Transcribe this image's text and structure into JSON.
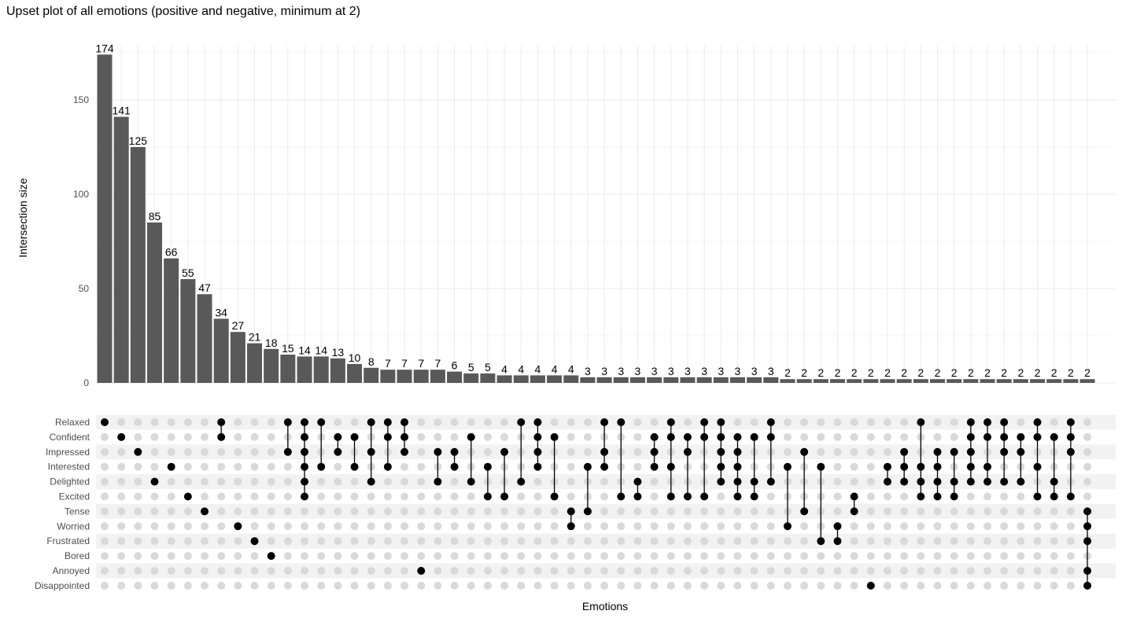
{
  "chart_data": {
    "type": "upset",
    "title": "Upset plot of all emotions (positive and negative, minimum at 2)",
    "ylabel": "Intersection size",
    "xlabel": "Emotions",
    "ylim": [
      0,
      175
    ],
    "yticks": [
      0,
      50,
      100,
      150
    ],
    "sets": [
      "Relaxed",
      "Confident",
      "Impressed",
      "Interested",
      "Delighted",
      "Excited",
      "Tense",
      "Worried",
      "Frustrated",
      "Bored",
      "Annoyed",
      "Disappointed"
    ],
    "intersections": [
      {
        "size": 174,
        "members": [
          "Relaxed"
        ]
      },
      {
        "size": 141,
        "members": [
          "Confident"
        ]
      },
      {
        "size": 125,
        "members": [
          "Impressed"
        ]
      },
      {
        "size": 85,
        "members": [
          "Delighted"
        ]
      },
      {
        "size": 66,
        "members": [
          "Interested"
        ]
      },
      {
        "size": 55,
        "members": [
          "Excited"
        ]
      },
      {
        "size": 47,
        "members": [
          "Tense"
        ]
      },
      {
        "size": 34,
        "members": [
          "Relaxed",
          "Confident"
        ]
      },
      {
        "size": 27,
        "members": [
          "Worried"
        ]
      },
      {
        "size": 21,
        "members": [
          "Frustrated"
        ]
      },
      {
        "size": 18,
        "members": [
          "Bored"
        ]
      },
      {
        "size": 15,
        "members": [
          "Relaxed",
          "Impressed"
        ]
      },
      {
        "size": 14,
        "members": [
          "Relaxed",
          "Confident",
          "Impressed",
          "Interested",
          "Delighted",
          "Excited"
        ]
      },
      {
        "size": 14,
        "members": [
          "Relaxed",
          "Interested"
        ]
      },
      {
        "size": 13,
        "members": [
          "Confident",
          "Impressed"
        ]
      },
      {
        "size": 10,
        "members": [
          "Confident",
          "Interested"
        ]
      },
      {
        "size": 8,
        "members": [
          "Relaxed",
          "Impressed",
          "Delighted"
        ]
      },
      {
        "size": 7,
        "members": [
          "Relaxed",
          "Confident",
          "Interested"
        ]
      },
      {
        "size": 7,
        "members": [
          "Relaxed",
          "Confident",
          "Impressed"
        ]
      },
      {
        "size": 7,
        "members": [
          "Annoyed"
        ]
      },
      {
        "size": 7,
        "members": [
          "Impressed",
          "Delighted"
        ]
      },
      {
        "size": 6,
        "members": [
          "Impressed",
          "Interested"
        ]
      },
      {
        "size": 5,
        "members": [
          "Confident",
          "Delighted"
        ]
      },
      {
        "size": 5,
        "members": [
          "Interested",
          "Excited"
        ]
      },
      {
        "size": 4,
        "members": [
          "Impressed",
          "Excited"
        ]
      },
      {
        "size": 4,
        "members": [
          "Relaxed",
          "Delighted"
        ]
      },
      {
        "size": 4,
        "members": [
          "Relaxed",
          "Confident",
          "Impressed",
          "Interested"
        ]
      },
      {
        "size": 4,
        "members": [
          "Confident",
          "Excited"
        ]
      },
      {
        "size": 4,
        "members": [
          "Tense",
          "Worried"
        ]
      },
      {
        "size": 3,
        "members": [
          "Interested",
          "Tense"
        ]
      },
      {
        "size": 3,
        "members": [
          "Relaxed",
          "Impressed",
          "Interested"
        ]
      },
      {
        "size": 3,
        "members": [
          "Relaxed",
          "Excited"
        ]
      },
      {
        "size": 3,
        "members": [
          "Delighted",
          "Excited"
        ]
      },
      {
        "size": 3,
        "members": [
          "Confident",
          "Impressed",
          "Interested"
        ]
      },
      {
        "size": 3,
        "members": [
          "Relaxed",
          "Confident",
          "Interested",
          "Excited"
        ]
      },
      {
        "size": 3,
        "members": [
          "Confident",
          "Impressed",
          "Excited"
        ]
      },
      {
        "size": 3,
        "members": [
          "Relaxed",
          "Confident",
          "Excited"
        ]
      },
      {
        "size": 3,
        "members": [
          "Relaxed",
          "Confident",
          "Impressed",
          "Interested",
          "Delighted"
        ]
      },
      {
        "size": 3,
        "members": [
          "Confident",
          "Impressed",
          "Interested",
          "Delighted",
          "Excited"
        ]
      },
      {
        "size": 3,
        "members": [
          "Confident",
          "Delighted",
          "Excited"
        ]
      },
      {
        "size": 3,
        "members": [
          "Relaxed",
          "Confident",
          "Delighted"
        ]
      },
      {
        "size": 2,
        "members": [
          "Interested",
          "Worried"
        ]
      },
      {
        "size": 2,
        "members": [
          "Impressed",
          "Tense"
        ]
      },
      {
        "size": 2,
        "members": [
          "Interested",
          "Frustrated"
        ]
      },
      {
        "size": 2,
        "members": [
          "Worried",
          "Frustrated"
        ]
      },
      {
        "size": 2,
        "members": [
          "Excited",
          "Tense"
        ]
      },
      {
        "size": 2,
        "members": [
          "Disappointed"
        ]
      },
      {
        "size": 2,
        "members": [
          "Delighted",
          "Interested"
        ]
      },
      {
        "size": 2,
        "members": [
          "Impressed",
          "Interested",
          "Delighted"
        ]
      },
      {
        "size": 2,
        "members": [
          "Relaxed",
          "Interested",
          "Delighted",
          "Excited"
        ]
      },
      {
        "size": 2,
        "members": [
          "Impressed",
          "Interested",
          "Delighted",
          "Excited"
        ]
      },
      {
        "size": 2,
        "members": [
          "Impressed",
          "Delighted",
          "Excited"
        ]
      },
      {
        "size": 2,
        "members": [
          "Relaxed",
          "Confident",
          "Impressed",
          "Interested",
          "Delighted"
        ]
      },
      {
        "size": 2,
        "members": [
          "Relaxed",
          "Confident",
          "Interested",
          "Delighted"
        ]
      },
      {
        "size": 2,
        "members": [
          "Relaxed",
          "Confident",
          "Impressed",
          "Delighted"
        ]
      },
      {
        "size": 2,
        "members": [
          "Confident",
          "Impressed",
          "Delighted"
        ]
      },
      {
        "size": 2,
        "members": [
          "Relaxed",
          "Confident",
          "Interested",
          "Excited"
        ]
      },
      {
        "size": 2,
        "members": [
          "Confident",
          "Delighted",
          "Excited"
        ]
      },
      {
        "size": 2,
        "members": [
          "Relaxed",
          "Confident",
          "Impressed",
          "Excited"
        ]
      },
      {
        "size": 2,
        "members": [
          "Tense",
          "Worried",
          "Frustrated",
          "Annoyed",
          "Disappointed"
        ]
      }
    ],
    "colors": {
      "bar": "#595959",
      "dot_on": "#000000",
      "dot_off": "#d9d9d9",
      "stripe": "#f2f2f2",
      "grid": "#ebebeb",
      "label_inside": "#ffffff",
      "label_outside": "#000000"
    }
  }
}
